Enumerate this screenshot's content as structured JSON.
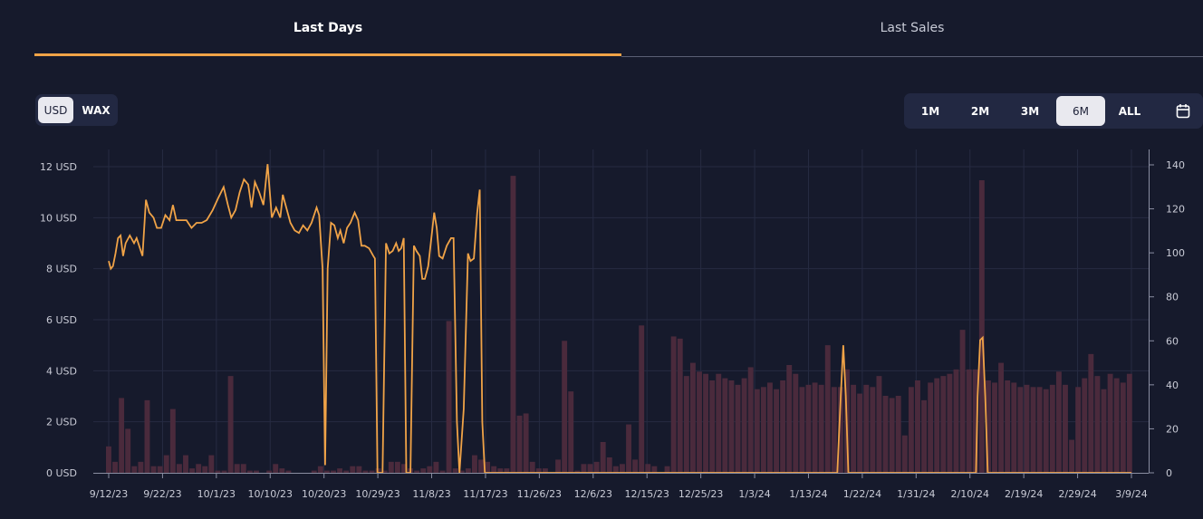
{
  "tabs": [
    {
      "label": "Last Days",
      "active": true
    },
    {
      "label": "Last Sales",
      "active": false
    }
  ],
  "currency": {
    "options": [
      "USD",
      "WAX"
    ],
    "selected": "USD"
  },
  "range": {
    "options": [
      "1M",
      "2M",
      "3M",
      "6M",
      "ALL"
    ],
    "selected": "6M",
    "calendar_icon": "calendar-icon"
  },
  "colors": {
    "accent": "#f0a347",
    "volume_bar": "#4a2a3c",
    "background": "#161a2c"
  },
  "chart_data": {
    "type": "line+bar",
    "x_ticks": [
      "9/12/23",
      "9/22/23",
      "10/1/23",
      "10/10/23",
      "10/20/23",
      "10/29/23",
      "11/8/23",
      "11/17/23",
      "11/26/23",
      "12/6/23",
      "12/15/23",
      "12/25/23",
      "1/3/24",
      "1/13/24",
      "1/22/24",
      "1/31/24",
      "2/10/24",
      "2/19/24",
      "2/29/24",
      "3/9/24"
    ],
    "y_left_ticks": [
      "0 USD",
      "2 USD",
      "4 USD",
      "6 USD",
      "8 USD",
      "10 USD",
      "12 USD"
    ],
    "y_left_range": [
      0,
      12
    ],
    "y_right_ticks": [
      "0",
      "20",
      "40",
      "60",
      "80",
      "100",
      "120",
      "140"
    ],
    "y_right_range": [
      0,
      140
    ],
    "grid": true,
    "series": [
      {
        "kind": "line",
        "axis": "left",
        "color": "#f0a347",
        "points": [
          [
            0,
            8.3
          ],
          [
            0.25,
            8.0
          ],
          [
            0.5,
            8.1
          ],
          [
            0.8,
            8.6
          ],
          [
            1.1,
            9.2
          ],
          [
            1.4,
            9.3
          ],
          [
            1.7,
            8.5
          ],
          [
            2,
            9.0
          ],
          [
            2.5,
            9.3
          ],
          [
            3,
            9.0
          ],
          [
            3.3,
            9.2
          ],
          [
            3.6,
            8.9
          ],
          [
            4,
            8.5
          ],
          [
            4.4,
            10.7
          ],
          [
            4.8,
            10.2
          ],
          [
            5.3,
            10.0
          ],
          [
            5.7,
            9.6
          ],
          [
            6.2,
            9.6
          ],
          [
            6.7,
            10.1
          ],
          [
            7.2,
            9.9
          ],
          [
            7.6,
            10.5
          ],
          [
            8,
            9.9
          ],
          [
            8.6,
            9.9
          ],
          [
            9.2,
            9.9
          ],
          [
            9.8,
            9.6
          ],
          [
            10.4,
            9.8
          ],
          [
            11,
            9.8
          ],
          [
            11.6,
            9.9
          ],
          [
            12.3,
            10.3
          ],
          [
            13,
            10.8
          ],
          [
            13.6,
            11.2
          ],
          [
            14.1,
            10.5
          ],
          [
            14.5,
            10.0
          ],
          [
            15,
            10.3
          ],
          [
            15.5,
            11.0
          ],
          [
            16,
            11.5
          ],
          [
            16.5,
            11.3
          ],
          [
            16.9,
            10.4
          ],
          [
            17.3,
            11.4
          ],
          [
            17.8,
            11.0
          ],
          [
            18.3,
            10.5
          ],
          [
            18.8,
            12.1
          ],
          [
            19.3,
            10.0
          ],
          [
            19.8,
            10.4
          ],
          [
            20.3,
            10.0
          ],
          [
            20.6,
            10.9
          ],
          [
            21,
            10.4
          ],
          [
            21.5,
            9.8
          ],
          [
            22,
            9.5
          ],
          [
            22.5,
            9.4
          ],
          [
            23,
            9.7
          ],
          [
            23.5,
            9.5
          ],
          [
            24,
            9.8
          ],
          [
            24.6,
            10.4
          ],
          [
            24.9,
            10.1
          ],
          [
            25.3,
            8.0
          ],
          [
            25.6,
            0.3
          ],
          [
            25.9,
            8.0
          ],
          [
            26.3,
            9.8
          ],
          [
            26.7,
            9.7
          ],
          [
            27.1,
            9.2
          ],
          [
            27.4,
            9.5
          ],
          [
            27.8,
            9.0
          ],
          [
            28.2,
            9.6
          ],
          [
            28.6,
            9.8
          ],
          [
            29.1,
            10.2
          ],
          [
            29.5,
            9.9
          ],
          [
            29.9,
            8.9
          ],
          [
            30.3,
            8.9
          ],
          [
            30.8,
            8.8
          ],
          [
            31.3,
            8.5
          ],
          [
            31.5,
            8.4
          ],
          [
            31.8,
            0.0
          ],
          [
            32.4,
            0.0
          ],
          [
            32.8,
            9.0
          ],
          [
            33.2,
            8.6
          ],
          [
            33.6,
            8.7
          ],
          [
            34,
            9.0
          ],
          [
            34.3,
            8.7
          ],
          [
            34.6,
            8.8
          ],
          [
            34.9,
            9.2
          ],
          [
            35.2,
            0.0
          ],
          [
            35.7,
            0.0
          ],
          [
            36.1,
            8.9
          ],
          [
            36.4,
            8.7
          ],
          [
            36.8,
            8.5
          ],
          [
            37.1,
            7.6
          ],
          [
            37.4,
            7.6
          ],
          [
            37.8,
            8.1
          ],
          [
            38.2,
            9.3
          ],
          [
            38.5,
            10.2
          ],
          [
            38.8,
            9.6
          ],
          [
            39.1,
            8.5
          ],
          [
            39.5,
            8.4
          ],
          [
            40,
            8.9
          ],
          [
            40.5,
            9.2
          ],
          [
            40.8,
            9.2
          ],
          [
            41.2,
            2.0
          ],
          [
            41.5,
            0.0
          ],
          [
            42,
            2.5
          ],
          [
            42.5,
            8.6
          ],
          [
            42.8,
            8.3
          ],
          [
            43.2,
            8.4
          ],
          [
            43.6,
            10.2
          ],
          [
            43.9,
            11.1
          ],
          [
            44.2,
            2.0
          ],
          [
            44.5,
            0.0
          ],
          [
            86.2,
            0.0
          ],
          [
            86.6,
            3.0
          ],
          [
            86.9,
            5.0
          ],
          [
            87.2,
            3.0
          ],
          [
            87.5,
            0.0
          ],
          [
            102.6,
            0.0
          ],
          [
            102.8,
            3.0
          ],
          [
            103.1,
            5.2
          ],
          [
            103.4,
            5.3
          ],
          [
            103.7,
            3.0
          ],
          [
            104,
            0.0
          ],
          [
            121,
            0.0
          ]
        ]
      },
      {
        "kind": "bar",
        "axis": "right",
        "color": "#4a2a3c",
        "values": [
          12,
          5,
          34,
          20,
          3,
          5,
          33,
          3,
          3,
          8,
          29,
          4,
          8,
          2,
          4,
          3,
          8,
          1,
          1,
          44,
          4,
          4,
          1,
          1,
          0,
          1,
          4,
          2,
          1,
          0,
          0,
          0,
          1,
          3,
          1,
          1,
          2,
          1,
          3,
          3,
          1,
          1,
          2,
          1,
          5,
          5,
          4,
          2,
          1,
          2,
          3,
          5,
          1,
          69,
          2,
          1,
          2,
          8,
          6,
          5,
          3,
          2,
          2,
          135,
          26,
          27,
          5,
          2,
          2,
          0,
          6,
          60,
          37,
          1,
          4,
          4,
          5,
          14,
          7,
          3,
          4,
          22,
          6,
          67,
          4,
          3,
          0,
          3,
          62,
          61,
          44,
          50,
          46,
          45,
          42,
          45,
          43,
          42,
          40,
          43,
          48,
          38,
          39,
          41,
          38,
          42,
          49,
          45,
          39,
          40,
          41,
          40,
          58,
          39,
          39,
          47,
          40,
          36,
          40,
          39,
          44,
          35,
          34,
          35,
          17,
          39,
          42,
          33,
          41,
          43,
          44,
          45,
          47,
          65,
          47,
          47,
          133,
          42,
          41,
          50,
          42,
          41,
          39,
          40,
          39,
          39,
          38,
          40,
          46,
          40,
          15,
          39,
          43,
          54,
          44,
          38,
          45,
          43,
          41,
          45
        ]
      }
    ]
  }
}
